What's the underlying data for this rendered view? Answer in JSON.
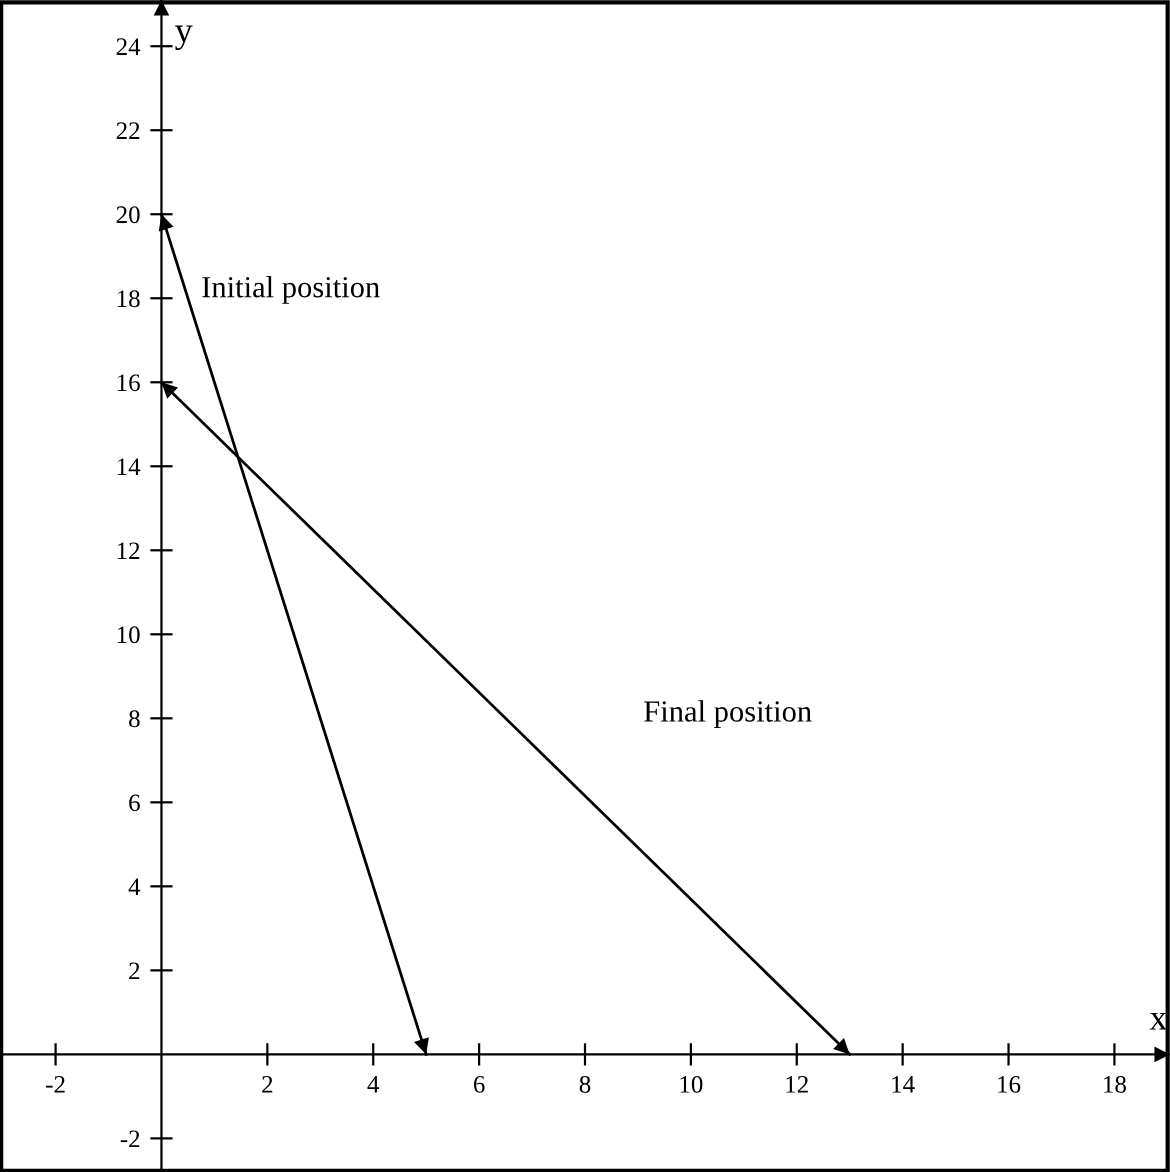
{
  "chart_data": {
    "type": "line",
    "xlabel": "x",
    "ylabel": "y",
    "xlim": [
      -3.05,
      19.05
    ],
    "ylim": [
      -2.8,
      25.1
    ],
    "xticks": [
      -2,
      2,
      4,
      6,
      8,
      10,
      12,
      14,
      16,
      18
    ],
    "yticks": [
      -2,
      2,
      4,
      6,
      8,
      10,
      12,
      14,
      16,
      18,
      20,
      22,
      24
    ],
    "series": [
      {
        "x": [
          0,
          5
        ],
        "values": [
          20,
          0
        ],
        "color": "#000000"
      },
      {
        "x": [
          0,
          13
        ],
        "values": [
          16,
          0
        ],
        "color": "#000000"
      }
    ],
    "annotations": [
      "Initial position",
      "Final position"
    ],
    "grid": false,
    "marker": "none",
    "line_style": "solid"
  }
}
